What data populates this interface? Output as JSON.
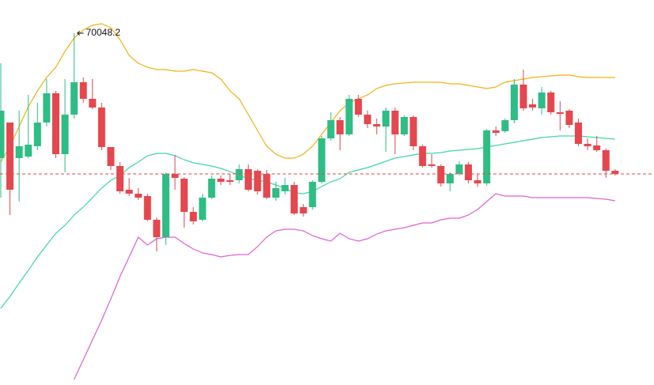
{
  "chart_data": {
    "type": "candlestick",
    "annotation": "70048.2",
    "ylim": [
      65598,
      70468
    ],
    "up_color": "#2ebd85",
    "down_color": "#e5474f",
    "open": [
      68468,
      68918,
      68468,
      68488,
      68618,
      68918,
      69288,
      68518,
      69018,
      69428,
      69218,
      69108,
      68608,
      68368,
      68068,
      68018,
      67988,
      67688,
      67468,
      68268,
      68208,
      67788,
      67688,
      67968,
      68208,
      68188,
      68188,
      68328,
      68308,
      68268,
      67968,
      68048,
      68128,
      67848,
      67848,
      68168,
      68718,
      68948,
      68768,
      69218,
      69018,
      68898,
      68868,
      69068,
      68768,
      68988,
      68618,
      68388,
      68368,
      68148,
      68268,
      68388,
      68188,
      68148,
      68818,
      68808,
      68948,
      69398,
      69148,
      69098,
      69298,
      69048,
      69068,
      68918,
      68648,
      68628,
      68568,
      68308
    ],
    "high": [
      69668,
      68918,
      69068,
      69268,
      69168,
      69468,
      69318,
      69468,
      70048.2,
      69488,
      69468,
      69168,
      68608,
      68418,
      68218,
      68088,
      68018,
      67718,
      68288,
      68508,
      68228,
      67848,
      68018,
      68248,
      68248,
      68268,
      68388,
      68388,
      68328,
      68318,
      68168,
      68218,
      68168,
      67888,
      68188,
      68748,
      69048,
      68988,
      69268,
      69268,
      69068,
      68968,
      69108,
      69108,
      69008,
      69008,
      68638,
      68518,
      68388,
      68288,
      68428,
      68418,
      68268,
      68838,
      68868,
      68968,
      69468,
      69588,
      69218,
      69368,
      69318,
      69188,
      69088,
      68968,
      68718,
      68748,
      68588,
      68328
    ],
    "low": [
      67968,
      67748,
      67918,
      68468,
      68568,
      68868,
      68468,
      68288,
      68968,
      69168,
      69088,
      68568,
      68318,
      68018,
      67988,
      67938,
      67668,
      67288,
      67368,
      68068,
      67588,
      67628,
      67668,
      67948,
      68128,
      68128,
      68148,
      68048,
      68008,
      67948,
      67928,
      68008,
      67748,
      67728,
      67818,
      68148,
      68688,
      68568,
      68748,
      68988,
      68848,
      68768,
      68548,
      68518,
      68748,
      68568,
      68348,
      68348,
      68108,
      68048,
      68248,
      68148,
      68108,
      68118,
      68748,
      68788,
      68908,
      69068,
      69068,
      69018,
      69018,
      68818,
      68848,
      68618,
      68568,
      68548,
      68218,
      68248
    ],
    "close": [
      69068,
      68068,
      68618,
      68638,
      68918,
      69288,
      68518,
      69018,
      69428,
      69218,
      69108,
      68608,
      68368,
      68048,
      68018,
      67968,
      67688,
      67468,
      68268,
      68218,
      67788,
      67668,
      67968,
      68208,
      68168,
      68168,
      68328,
      68068,
      68048,
      67968,
      68088,
      68128,
      67768,
      67768,
      68168,
      68718,
      68948,
      68768,
      69218,
      69018,
      68898,
      68868,
      69068,
      68768,
      68988,
      68618,
      68368,
      68368,
      68148,
      68268,
      68388,
      68188,
      68148,
      68818,
      68788,
      68948,
      69398,
      69098,
      69108,
      69298,
      69048,
      69028,
      68888,
      68648,
      68618,
      68568,
      68308,
      68268
    ],
    "bands": [
      {
        "color": "#f5b014",
        "values": [
          68418,
          68618,
          68868,
          69118,
          69318,
          69488,
          69618,
          69818,
          69988,
          70088,
          70148,
          70168,
          70118,
          69968,
          69768,
          69668,
          69618,
          69588,
          69588,
          69568,
          69568,
          69588,
          69568,
          69548,
          69468,
          69318,
          69218,
          69018,
          68818,
          68618,
          68518,
          68468,
          68468,
          68518,
          68618,
          68768,
          68918,
          69068,
          69168,
          69218,
          69268,
          69348,
          69388,
          69408,
          69418,
          69428,
          69428,
          69428,
          69428,
          69408,
          69408,
          69388,
          69368,
          69348,
          69368,
          69428,
          69448,
          69468,
          69488,
          69498,
          69508,
          69518,
          69518,
          69498,
          69488,
          69488,
          69488,
          69488
        ]
      },
      {
        "color": "#3dd6a8",
        "values": [
          66568,
          66718,
          66888,
          67048,
          67218,
          67368,
          67518,
          67618,
          67748,
          67848,
          67968,
          68088,
          68188,
          68248,
          68348,
          68418,
          68498,
          68528,
          68528,
          68498,
          68448,
          68408,
          68388,
          68368,
          68338,
          68298,
          68248,
          68208,
          68188,
          68168,
          68128,
          68088,
          68028,
          68018,
          68048,
          68108,
          68168,
          68208,
          68288,
          68318,
          68348,
          68388,
          68428,
          68468,
          68488,
          68508,
          68528,
          68528,
          68538,
          68558,
          68568,
          68578,
          68588,
          68608,
          68628,
          68648,
          68668,
          68688,
          68708,
          68728,
          68738,
          68748,
          68748,
          68748,
          68738,
          68728,
          68718,
          68708
        ]
      },
      {
        "color": "#e060d0",
        "values": [
          null,
          null,
          null,
          null,
          null,
          null,
          null,
          null,
          65668,
          65918,
          66168,
          66418,
          66688,
          66968,
          67218,
          67468,
          67368,
          67448,
          67468,
          67468,
          67388,
          67318,
          67268,
          67248,
          67218,
          67238,
          67248,
          67248,
          67348,
          67468,
          67548,
          67568,
          67568,
          67548,
          67488,
          67448,
          67418,
          67518,
          67448,
          67418,
          67448,
          67508,
          67548,
          67568,
          67588,
          67618,
          67648,
          67648,
          67688,
          67708,
          67708,
          67748,
          67818,
          67918,
          68018,
          67988,
          67988,
          67988,
          67968,
          67968,
          67968,
          67968,
          67968,
          67968,
          67968,
          67958,
          67948,
          67928
        ]
      }
    ]
  }
}
